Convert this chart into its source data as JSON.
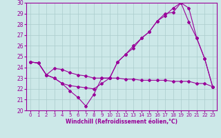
{
  "xlabel": "Windchill (Refroidissement éolien,°C)",
  "xlim": [
    -0.5,
    23.5
  ],
  "ylim": [
    20,
    30
  ],
  "xticks": [
    0,
    1,
    2,
    3,
    4,
    5,
    6,
    7,
    8,
    9,
    10,
    11,
    12,
    13,
    14,
    15,
    16,
    17,
    18,
    19,
    20,
    21,
    22,
    23
  ],
  "yticks": [
    20,
    21,
    22,
    23,
    24,
    25,
    26,
    27,
    28,
    29,
    30
  ],
  "background_color": "#cce8e8",
  "grid_color": "#aacccc",
  "line_color": "#990099",
  "line1_x": [
    0,
    1,
    2,
    3,
    4,
    5,
    6,
    7,
    8,
    9,
    10,
    11,
    12,
    13,
    14,
    15,
    16,
    17,
    18,
    19,
    20,
    21,
    22,
    23
  ],
  "line1_y": [
    24.5,
    24.4,
    23.3,
    23.0,
    22.5,
    21.8,
    21.2,
    20.4,
    21.5,
    23.0,
    23.0,
    24.5,
    25.2,
    26.0,
    26.7,
    27.3,
    28.3,
    29.0,
    29.1,
    30.0,
    29.5,
    26.7,
    24.8,
    22.2
  ],
  "line2_x": [
    0,
    1,
    2,
    3,
    4,
    5,
    6,
    7,
    8,
    9,
    10,
    11,
    12,
    13,
    14,
    15,
    16,
    17,
    18,
    19,
    20,
    21,
    22,
    23
  ],
  "line2_y": [
    24.5,
    24.4,
    23.3,
    23.9,
    23.8,
    23.5,
    23.3,
    23.2,
    23.0,
    23.0,
    23.0,
    23.0,
    22.9,
    22.9,
    22.8,
    22.8,
    22.8,
    22.8,
    22.7,
    22.7,
    22.7,
    22.5,
    22.5,
    22.2
  ],
  "line3_x": [
    0,
    1,
    2,
    3,
    4,
    5,
    6,
    7,
    8,
    9,
    10,
    11,
    12,
    13,
    14,
    15,
    16,
    17,
    18,
    19,
    20,
    21,
    22,
    23
  ],
  "line3_y": [
    24.5,
    24.4,
    23.3,
    23.0,
    22.5,
    22.3,
    22.2,
    22.1,
    22.0,
    22.5,
    23.0,
    24.5,
    25.2,
    25.8,
    26.7,
    27.3,
    28.3,
    28.8,
    29.5,
    30.0,
    28.2,
    26.7,
    24.8,
    22.2
  ]
}
